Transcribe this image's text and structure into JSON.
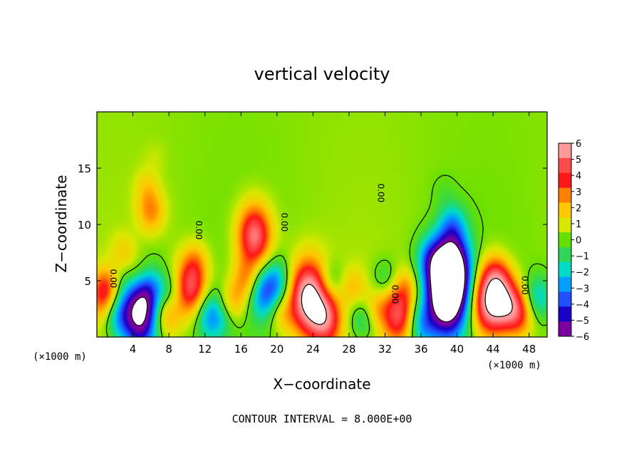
{
  "chart_data": {
    "type": "heatmap",
    "title": "vertical velocity",
    "xlabel": "X−coordinate",
    "ylabel": "Z−coordinate",
    "x_unit_left": "(×1000 m)",
    "x_unit_right": "(×1000 m)",
    "xlim": [
      0,
      50
    ],
    "ylim": [
      0,
      20
    ],
    "x_ticks": [
      4,
      8,
      12,
      16,
      20,
      24,
      28,
      32,
      36,
      40,
      44,
      48
    ],
    "y_ticks": [
      5,
      10,
      15
    ],
    "x_tick_labels": [
      "4",
      "8",
      "12",
      "16",
      "20",
      "24",
      "28",
      "32",
      "36",
      "40",
      "44",
      "48"
    ],
    "y_tick_labels": [
      "5",
      "10",
      "15"
    ],
    "colorbar": {
      "levels": [
        6,
        5,
        4,
        3,
        2,
        1,
        0,
        -1,
        -2,
        -3,
        -4,
        -5,
        -6
      ],
      "labels": [
        "6",
        "5",
        "4",
        "3",
        "2",
        "1",
        "0",
        "−1",
        "−2",
        "−3",
        "−4",
        "−5",
        "−6"
      ],
      "colors": [
        "#ff9898",
        "#ff4b4b",
        "#ff1616",
        "#ff7f00",
        "#ffc800",
        "#d8e800",
        "#64e000",
        "#2ed75a",
        "#00dcc8",
        "#009eff",
        "#2050ff",
        "#1800c8",
        "#7a00a0"
      ]
    },
    "contour_interval_text": "CONTOUR INTERVAL = 8.000E+00",
    "contour_labels": [
      "0.00",
      "0.00",
      "0.00",
      "0.00",
      "0.00",
      "0.00"
    ],
    "features": [
      {
        "x": 0.9,
        "z": 3.4,
        "w": 3.5
      },
      {
        "x": 1.0,
        "z": 4.6,
        "w": 1.2
      },
      {
        "x": 2.0,
        "z": 2.0,
        "w": -2.5
      },
      {
        "x": 3.0,
        "z": 7.5,
        "w": 1.5
      },
      {
        "x": 4.8,
        "z": 5.0,
        "w": 3.5
      },
      {
        "x": 4.8,
        "z": 2.4,
        "w": -8.5
      },
      {
        "x": 5.5,
        "z": 4.3,
        "w": -2.5
      },
      {
        "x": 6.0,
        "z": 11.2,
        "w": 2.5
      },
      {
        "x": 5.5,
        "z": 13.5,
        "w": 1.0
      },
      {
        "x": 8.0,
        "z": 4.0,
        "w": -1.5
      },
      {
        "x": 7.5,
        "z": 2.0,
        "w": 3.0
      },
      {
        "x": 10.5,
        "z": 4.5,
        "w": 5.0
      },
      {
        "x": 12.5,
        "z": 2.0,
        "w": -3.2
      },
      {
        "x": 11.0,
        "z": 7.0,
        "w": 1.0
      },
      {
        "x": 17.5,
        "z": 9.0,
        "w": 5.5
      },
      {
        "x": 16.5,
        "z": 5.0,
        "w": 2.5
      },
      {
        "x": 18.5,
        "z": 3.8,
        "w": -3.5
      },
      {
        "x": 20.0,
        "z": 5.0,
        "w": -2.5
      },
      {
        "x": 20.5,
        "z": 2.0,
        "w": 1.5
      },
      {
        "x": 23.5,
        "z": 3.5,
        "w": 7.0
      },
      {
        "x": 25.5,
        "z": 1.5,
        "w": 4.0
      },
      {
        "x": 26.0,
        "z": 5.0,
        "w": -1.5
      },
      {
        "x": 28.5,
        "z": 4.5,
        "w": 1.5
      },
      {
        "x": 29.5,
        "z": 1.5,
        "w": -2.0
      },
      {
        "x": 31.0,
        "z": 2.5,
        "w": 1.5
      },
      {
        "x": 32.0,
        "z": 5.2,
        "w": -1.5
      },
      {
        "x": 33.5,
        "z": 2.0,
        "w": 4.5
      },
      {
        "x": 34.5,
        "z": 4.5,
        "w": 1.5
      },
      {
        "x": 37.0,
        "z": 7.0,
        "w": -2.5
      },
      {
        "x": 39.5,
        "z": 6.0,
        "w": -6.5
      },
      {
        "x": 38.8,
        "z": 3.8,
        "w": -9.0
      },
      {
        "x": 39.5,
        "z": 10.0,
        "w": -2.3
      },
      {
        "x": 38.5,
        "z": 13.0,
        "w": -0.5
      },
      {
        "x": 36.0,
        "z": 1.0,
        "w": -2.5
      },
      {
        "x": 43.5,
        "z": 3.2,
        "w": 6.5
      },
      {
        "x": 45.5,
        "z": 3.0,
        "w": 4.0
      },
      {
        "x": 44.5,
        "z": 5.5,
        "w": 2.0
      },
      {
        "x": 47.0,
        "z": 2.0,
        "w": 3.0
      },
      {
        "x": 49.0,
        "z": 3.5,
        "w": -2.5
      },
      {
        "x": 15.0,
        "z": 3.0,
        "w": 2.0
      },
      {
        "x": 14.0,
        "z": 1.5,
        "w": -1.0
      },
      {
        "x": 6.5,
        "z": 16.0,
        "w": 0.4
      }
    ]
  }
}
